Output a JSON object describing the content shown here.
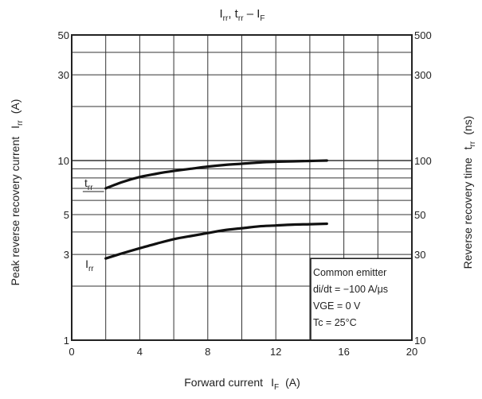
{
  "chart_data": {
    "type": "line",
    "title": {
      "main": "I",
      "sub1": "rr",
      "mid": ", t",
      "sub2": "rr",
      "dash": " – I",
      "sub3": "F"
    },
    "xlabel": {
      "text": "Forward current",
      "symbol": "I",
      "symbol_sub": "F",
      "unit": "(A)"
    },
    "ylabel_left": {
      "text": "Peak reverse recovery current",
      "symbol": "I",
      "symbol_sub": "rr",
      "unit": "(A)"
    },
    "ylabel_right": {
      "text": "Reverse recovery time",
      "symbol": "t",
      "symbol_sub": "rr",
      "unit": "(ns)"
    },
    "x_axis": {
      "range": [
        0,
        20
      ],
      "ticks": [
        0,
        4,
        8,
        12,
        16,
        20
      ],
      "tick_labels": [
        "0",
        "4",
        "8",
        "12",
        "16",
        "20"
      ],
      "minor_grid": [
        2,
        6,
        10,
        14,
        18
      ]
    },
    "y_left": {
      "scale": "log",
      "range": [
        1,
        50
      ],
      "ticks": [
        1,
        3,
        5,
        10,
        30,
        50
      ],
      "tick_labels": [
        "1",
        "3",
        "5",
        "10",
        "30",
        "50"
      ],
      "grid": [
        1,
        2,
        3,
        4,
        5,
        6,
        7,
        8,
        9,
        10,
        20,
        30,
        40,
        50
      ]
    },
    "y_right": {
      "scale": "log",
      "range": [
        10,
        500
      ],
      "ticks": [
        10,
        30,
        50,
        100,
        300,
        500
      ],
      "tick_labels": [
        "10",
        "30",
        "50",
        "100",
        "300",
        "500"
      ]
    },
    "grid": true,
    "series": [
      {
        "name": "t",
        "name_sub": "rr",
        "axis": "right",
        "x": [
          2,
          3,
          4,
          5,
          6,
          7,
          8,
          9,
          10,
          11,
          12,
          13,
          14,
          15
        ],
        "y": [
          70,
          76,
          81,
          84.5,
          87.5,
          90,
          92.5,
          94.5,
          96,
          97.5,
          98.5,
          99,
          99.5,
          100
        ]
      },
      {
        "name": "I",
        "name_sub": "rr",
        "axis": "left",
        "x": [
          2,
          3,
          4,
          5,
          6,
          7,
          8,
          9,
          10,
          11,
          12,
          13,
          14,
          15
        ],
        "y": [
          2.85,
          3.05,
          3.25,
          3.45,
          3.65,
          3.8,
          3.95,
          4.1,
          4.2,
          4.3,
          4.35,
          4.4,
          4.42,
          4.45
        ]
      }
    ],
    "annotation": {
      "lines": [
        "Common emitter",
        "di/dt = −100 A/μs",
        "VGE = 0 V",
        "Tc = 25°C"
      ],
      "position": "bottom-right"
    }
  }
}
